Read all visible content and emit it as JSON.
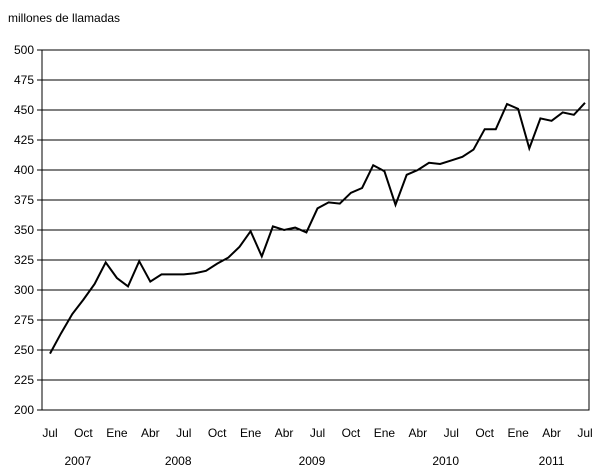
{
  "chart_data": {
    "type": "line",
    "title": "",
    "unit_label": "millones de llamadas",
    "xlabel": "",
    "ylabel": "",
    "ylim": [
      200,
      500
    ],
    "yticks": [
      200,
      225,
      250,
      275,
      300,
      325,
      350,
      375,
      400,
      425,
      450,
      475,
      500
    ],
    "grid": true,
    "legend": "none",
    "line_color": "#000000",
    "x_tick_labels": [
      {
        "month": "2007-07",
        "label": "Jul"
      },
      {
        "month": "2007-10",
        "label": "Oct"
      },
      {
        "month": "2008-01",
        "label": "Ene"
      },
      {
        "month": "2008-04",
        "label": "Abr"
      },
      {
        "month": "2008-07",
        "label": "Jul"
      },
      {
        "month": "2008-10",
        "label": "Oct"
      },
      {
        "month": "2009-01",
        "label": "Ene"
      },
      {
        "month": "2009-04",
        "label": "Abr"
      },
      {
        "month": "2009-07",
        "label": "Jul"
      },
      {
        "month": "2009-10",
        "label": "Oct"
      },
      {
        "month": "2010-01",
        "label": "Ene"
      },
      {
        "month": "2010-04",
        "label": "Abr"
      },
      {
        "month": "2010-07",
        "label": "Jul"
      },
      {
        "month": "2010-10",
        "label": "Oct"
      },
      {
        "month": "2011-01",
        "label": "Ene"
      },
      {
        "month": "2011-04",
        "label": "Abr"
      },
      {
        "month": "2011-07",
        "label": "Jul"
      }
    ],
    "year_labels": [
      {
        "label": "2007",
        "from": "2007-07",
        "to": "2007-12"
      },
      {
        "label": "2008",
        "from": "2008-01",
        "to": "2008-12"
      },
      {
        "label": "2009",
        "from": "2009-01",
        "to": "2009-12"
      },
      {
        "label": "2010",
        "from": "2010-01",
        "to": "2010-12"
      },
      {
        "label": "2011",
        "from": "2011-01",
        "to": "2011-07"
      }
    ],
    "series": [
      {
        "x": [
          "2007-07",
          "2007-08",
          "2007-09",
          "2007-10",
          "2007-11",
          "2007-12",
          "2008-01",
          "2008-02",
          "2008-03",
          "2008-04",
          "2008-05",
          "2008-06",
          "2008-07",
          "2008-08",
          "2008-09",
          "2008-10",
          "2008-11",
          "2008-12",
          "2009-01",
          "2009-02",
          "2009-03",
          "2009-04",
          "2009-05",
          "2009-06",
          "2009-07",
          "2009-08",
          "2009-09",
          "2009-10",
          "2009-11",
          "2009-12",
          "2010-01",
          "2010-02",
          "2010-03",
          "2010-04",
          "2010-05",
          "2010-06",
          "2010-07",
          "2010-08",
          "2010-09",
          "2010-10",
          "2010-11",
          "2010-12",
          "2011-01",
          "2011-02",
          "2011-03",
          "2011-04",
          "2011-05",
          "2011-06",
          "2011-07"
        ],
        "values": [
          247,
          264,
          280,
          292,
          305,
          323,
          310,
          303,
          324,
          307,
          313,
          313,
          313,
          314,
          316,
          322,
          327,
          336,
          349,
          328,
          353,
          350,
          352,
          348,
          368,
          373,
          372,
          381,
          385,
          404,
          399,
          371,
          396,
          400,
          406,
          405,
          408,
          411,
          417,
          434,
          434,
          455,
          451,
          418,
          443,
          441,
          448,
          446,
          456
        ]
      }
    ]
  }
}
